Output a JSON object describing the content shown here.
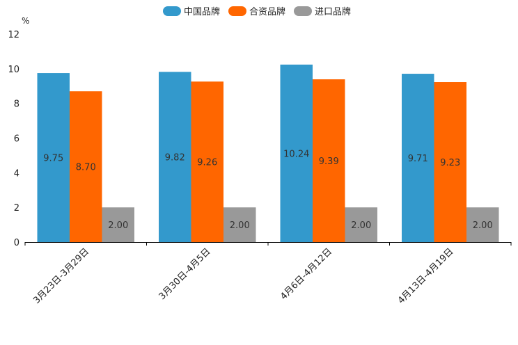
{
  "chart_data": {
    "type": "bar",
    "unit": "%",
    "categories": [
      "3月23日-3月29日",
      "3月30日-4月5日",
      "4月6日-4月12日",
      "4月13日-4月19日"
    ],
    "series": [
      {
        "name": "中国品牌",
        "color": "#3399cc",
        "values": [
          9.75,
          9.82,
          10.24,
          9.71
        ],
        "labels": [
          "9.75",
          "9.82",
          "10.24",
          "9.71"
        ]
      },
      {
        "name": "合资品牌",
        "color": "#ff6600",
        "values": [
          8.7,
          9.26,
          9.39,
          9.23
        ],
        "labels": [
          "8.70",
          "9.26",
          "9.39",
          "9.23"
        ]
      },
      {
        "name": "进口品牌",
        "color": "#999999",
        "values": [
          2.0,
          2.0,
          2.0,
          2.0
        ],
        "labels": [
          "2.00",
          "2.00",
          "2.00",
          "2.00"
        ]
      }
    ],
    "ylim": [
      0,
      12
    ],
    "yticks": [
      "0",
      "2",
      "4",
      "6",
      "8",
      "10",
      "12"
    ],
    "legend_position": "top-center",
    "grid": false
  }
}
